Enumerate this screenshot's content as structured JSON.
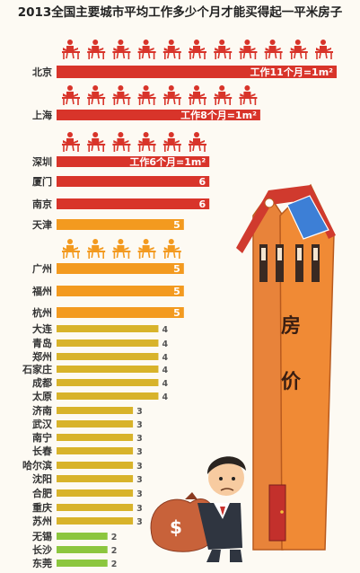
{
  "title": "2013全国主要城市平均工作多少个月才能买得起一平米房子",
  "house_label": [
    "房",
    "价"
  ],
  "colors": {
    "red": "#d8342a",
    "orange": "#f39a1f",
    "yellow": "#d8b32a",
    "green": "#8cc63e",
    "house": "#e8833a",
    "roof": "#d03a2e"
  },
  "chart_data": {
    "type": "bar",
    "title": "2013全国主要城市平均工作多少个月才能买得起一平米房子",
    "unit": "个月",
    "categories": [
      "北京",
      "上海",
      "深圳",
      "厦门",
      "南京",
      "天津",
      "广州",
      "福州",
      "杭州",
      "大连",
      "青岛",
      "郑州",
      "石家庄",
      "成都",
      "太原",
      "济南",
      "武汉",
      "南宁",
      "长春",
      "哈尔滨",
      "沈阳",
      "合肥",
      "重庆",
      "苏州",
      "无锡",
      "长沙",
      "东莞"
    ],
    "values": [
      11,
      8,
      6,
      6,
      6,
      5,
      5,
      5,
      5,
      4,
      4,
      4,
      4,
      4,
      4,
      3,
      3,
      3,
      3,
      3,
      3,
      3,
      3,
      3,
      2,
      2,
      2
    ],
    "value_labels": [
      "工作11个月=1m²",
      "工作8个月=1m²",
      "工作6个月=1m²",
      "6",
      "6",
      "5",
      "5",
      "5",
      "5",
      "4",
      "4",
      "4",
      "4",
      "4",
      "4",
      "3",
      "3",
      "3",
      "3",
      "3",
      "3",
      "3",
      "3",
      "3",
      "2",
      "2",
      "2"
    ],
    "xlim": [
      0,
      11
    ]
  }
}
